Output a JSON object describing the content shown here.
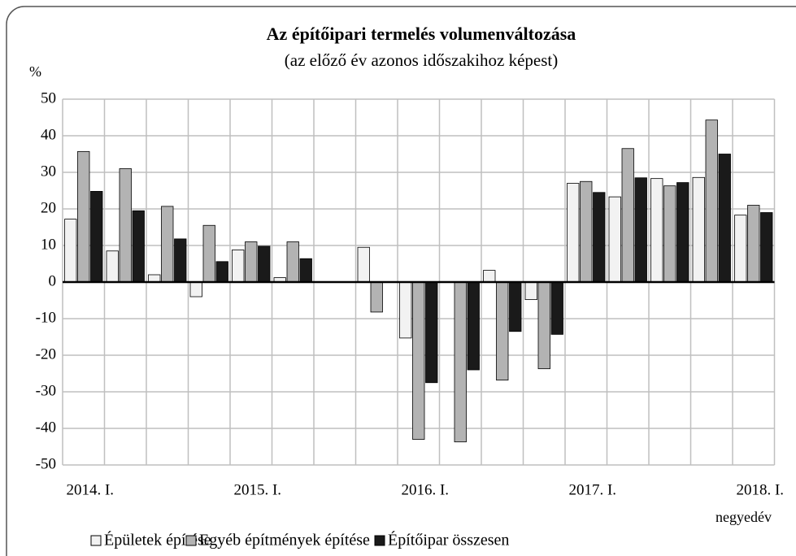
{
  "chart_data": {
    "type": "bar",
    "title": "Az építőipari termelés volumenváltozása",
    "subtitle": "(az előző év azonos időszakihoz képest)",
    "y_axis_label": "%",
    "x_axis_label": "negyedév",
    "categories": [
      "2014. I.",
      null,
      null,
      null,
      "2015. I.",
      null,
      null,
      null,
      "2016. I.",
      null,
      null,
      null,
      "2017. I.",
      null,
      null,
      null,
      "2018. I."
    ],
    "series": [
      {
        "name": "Épületek építése",
        "color": "#f2f2f2",
        "values": [
          17.2,
          8.5,
          2,
          -4,
          8.8,
          1.2,
          null,
          9.5,
          -15.3,
          null,
          3.2,
          -4.8,
          27,
          23.3,
          28.3,
          28.6,
          18.3
        ]
      },
      {
        "name": "Egyéb építmények építése",
        "color": "#b3b3b3",
        "values": [
          35.7,
          31,
          20.7,
          15.5,
          11,
          11,
          null,
          -8.2,
          -43,
          -43.7,
          -26.8,
          -23.7,
          27.5,
          36.5,
          26.3,
          44.3,
          21
        ]
      },
      {
        "name": "Építőipar összesen",
        "color": "#1a1a1a",
        "values": [
          24.8,
          19.5,
          11.8,
          5.6,
          9.8,
          6.4,
          null,
          null,
          -27.5,
          -24,
          -13.5,
          -14.3,
          24.5,
          28.5,
          27.2,
          35,
          19
        ]
      }
    ],
    "ylim": [
      -50,
      50
    ],
    "yticks": [
      -50,
      -40,
      -30,
      -20,
      -10,
      0,
      10,
      20,
      30,
      40,
      50
    ],
    "grid": true
  }
}
